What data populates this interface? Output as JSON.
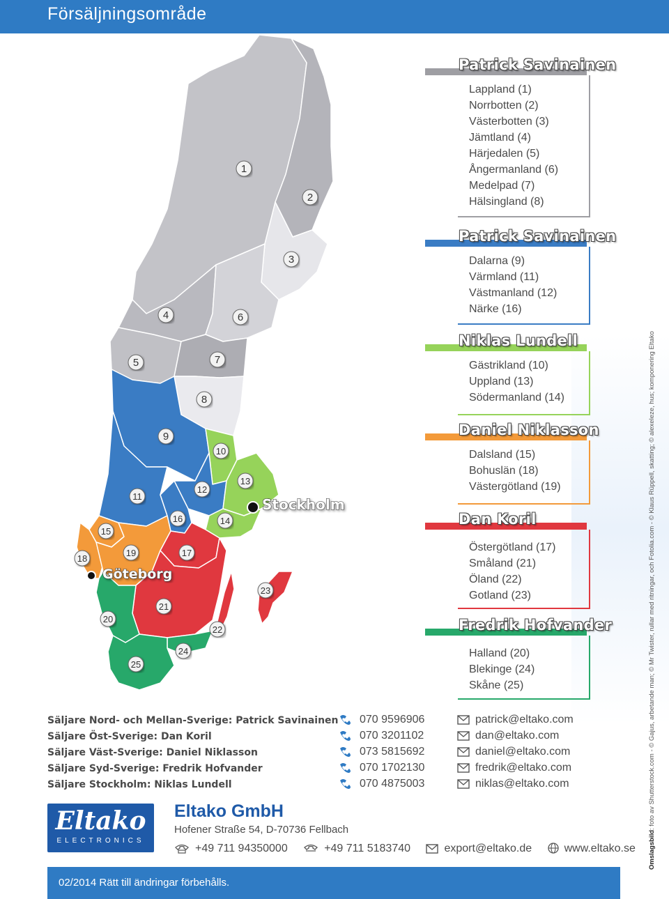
{
  "header": {
    "title": "Försäljningsområde"
  },
  "colors": {
    "header_blue": "#2f7bc4",
    "grey": "#b3b3b8",
    "blue": "#3a7cc4",
    "violet": "#8a5ab8",
    "orange": "#f39a3a",
    "red": "#e0383f",
    "green": "#27a86a",
    "lime": "#96d35a"
  },
  "map": {
    "cities": {
      "stockholm": "Stockholm",
      "goteborg": "Göteborg"
    },
    "badges": [
      "1",
      "2",
      "3",
      "4",
      "5",
      "6",
      "7",
      "8",
      "9",
      "10",
      "11",
      "12",
      "13",
      "14",
      "15",
      "16",
      "17",
      "18",
      "19",
      "20",
      "21",
      "22",
      "23",
      "24",
      "25"
    ]
  },
  "groups": [
    {
      "name": "Patrick Savinainen",
      "color": "#9e9ea3",
      "regions": [
        "Lappland (1)",
        "Norrbotten (2)",
        "Västerbotten (3)",
        "Jämtland (4)",
        "Härjedalen (5)",
        "Ångermanland (6)",
        "Medelpad (7)",
        "Hälsingland (8)"
      ]
    },
    {
      "name": "Patrick Savinainen",
      "color": "#3a7cc4",
      "regions": [
        "Dalarna (9)",
        "Värmland (11)",
        "Västmanland (12)",
        "Närke (16)"
      ]
    },
    {
      "name": "Niklas Lundell",
      "color": "#96d35a",
      "regions": [
        "Gästrikland (10)",
        "Uppland (13)",
        "Södermanland (14)"
      ]
    },
    {
      "name": "Daniel Niklasson",
      "color": "#f39a3a",
      "regions": [
        "Dalsland (15)",
        "Bohuslän (18)",
        "Västergötland (19)"
      ]
    },
    {
      "name": "Dan Koril",
      "color": "#e0383f",
      "regions": [
        "Östergötland (17)",
        "Småland (21)",
        "Öland (22)",
        "Gotland (23)"
      ]
    },
    {
      "name": "Fredrik Hofvander",
      "color": "#27a86a",
      "regions": [
        "Halland (20)",
        "Blekinge (24)",
        "Skåne (25)"
      ]
    }
  ],
  "contacts": [
    {
      "role": "Säljare Nord- och Mellan-Sverige: Patrick Savinainen",
      "phone": "070 9596906",
      "email": "patrick@eltako.com"
    },
    {
      "role": "Säljare Öst-Sverige: Dan Koril",
      "phone": "070 3201102",
      "email": "dan@eltako.com"
    },
    {
      "role": "Säljare Väst-Sverige: Daniel Niklasson",
      "phone": "073 5815692",
      "email": "daniel@eltako.com"
    },
    {
      "role": "Säljare Syd-Sverige: Fredrik Hofvander",
      "phone": "070 1702130",
      "email": "fredrik@eltako.com"
    },
    {
      "role": "Säljare Stockholm: Niklas Lundell",
      "phone": "070 4875003",
      "email": "niklas@eltako.com"
    }
  ],
  "logo": {
    "wordmark": "Eltako",
    "sub": "ELECTRONICS"
  },
  "company": {
    "name": "Eltako GmbH",
    "address": "Hofener Straße 54, D-70736 Fellbach",
    "phone": "+49 711 94350000",
    "fax": "+49 711 5183740",
    "email": "export@eltako.de",
    "web": "www.eltako.se"
  },
  "credit": {
    "bold": "Omslagsbild",
    "text": ": foto av Shutterstock.com - © Gajus, arbetande man; © Mr Twister, rullar med ritningar, och Fotolia.com - © Klaus Rüppell, skatting; © alexeleze, hus; komponering Eltako"
  },
  "footer": {
    "text": "02/2014 Rätt till ändringar förbehålls."
  }
}
